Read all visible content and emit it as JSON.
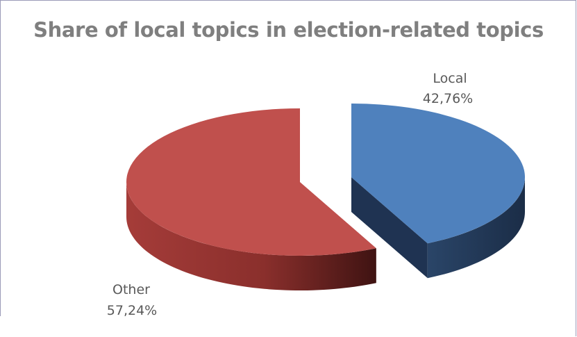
{
  "chart_data": {
    "type": "pie",
    "title": "Share of local topics in election-related topics",
    "categories": [
      "Local",
      "Other"
    ],
    "values": [
      42.76,
      57.24
    ],
    "value_labels": [
      "42,76%",
      "57,24%"
    ],
    "colors": {
      "Local": {
        "top": "#4f81bd",
        "side_dark": "#1f3352",
        "side_mid": "#2c4870"
      },
      "Other": {
        "top": "#c0504d",
        "side_dark": "#4a1716",
        "side_mid": "#8a2f2c"
      }
    },
    "style": "3d-exploded",
    "legend": "none"
  }
}
